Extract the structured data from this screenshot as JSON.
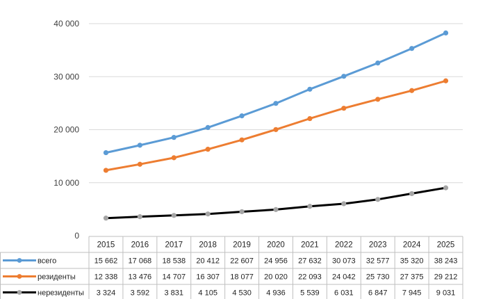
{
  "chart_data": {
    "type": "line",
    "title": "",
    "xlabel": "",
    "ylabel": "",
    "ylim": [
      0,
      40000
    ],
    "yticks": [
      "0",
      "10 000",
      "20 000",
      "30 000",
      "40 000"
    ],
    "ytick_values": [
      0,
      10000,
      20000,
      30000,
      40000
    ],
    "grid": true,
    "legend": "data-table-below",
    "categories": [
      "2015",
      "2016",
      "2017",
      "2018",
      "2019",
      "2020",
      "2021",
      "2022",
      "2023",
      "2024",
      "2025"
    ],
    "series": [
      {
        "name": "всего",
        "color": "#5b9bd5",
        "values": [
          15662,
          17068,
          18538,
          20412,
          22607,
          24956,
          27632,
          30073,
          32577,
          35320,
          38243
        ],
        "labels": [
          "15 662",
          "17 068",
          "18 538",
          "20 412",
          "22 607",
          "24 956",
          "27 632",
          "30 073",
          "32 577",
          "35 320",
          "38 243"
        ]
      },
      {
        "name": "резиденты",
        "color": "#ed7d31",
        "values": [
          12338,
          13476,
          14707,
          16307,
          18077,
          20020,
          22093,
          24042,
          25730,
          27375,
          29212
        ],
        "labels": [
          "12 338",
          "13 476",
          "14 707",
          "16 307",
          "18 077",
          "20 020",
          "22 093",
          "24 042",
          "25 730",
          "27 375",
          "29 212"
        ]
      },
      {
        "name": "нерезиденты",
        "color": "#000000",
        "marker_color": "#a5a5a5",
        "values": [
          3324,
          3592,
          3831,
          4105,
          4530,
          4936,
          5539,
          6031,
          6847,
          7945,
          9031
        ],
        "labels": [
          "3 324",
          "3 592",
          "3 831",
          "4 105",
          "4 530",
          "4 936",
          "5 539",
          "6 031",
          "6 847",
          "7 945",
          "9 031"
        ]
      }
    ]
  }
}
